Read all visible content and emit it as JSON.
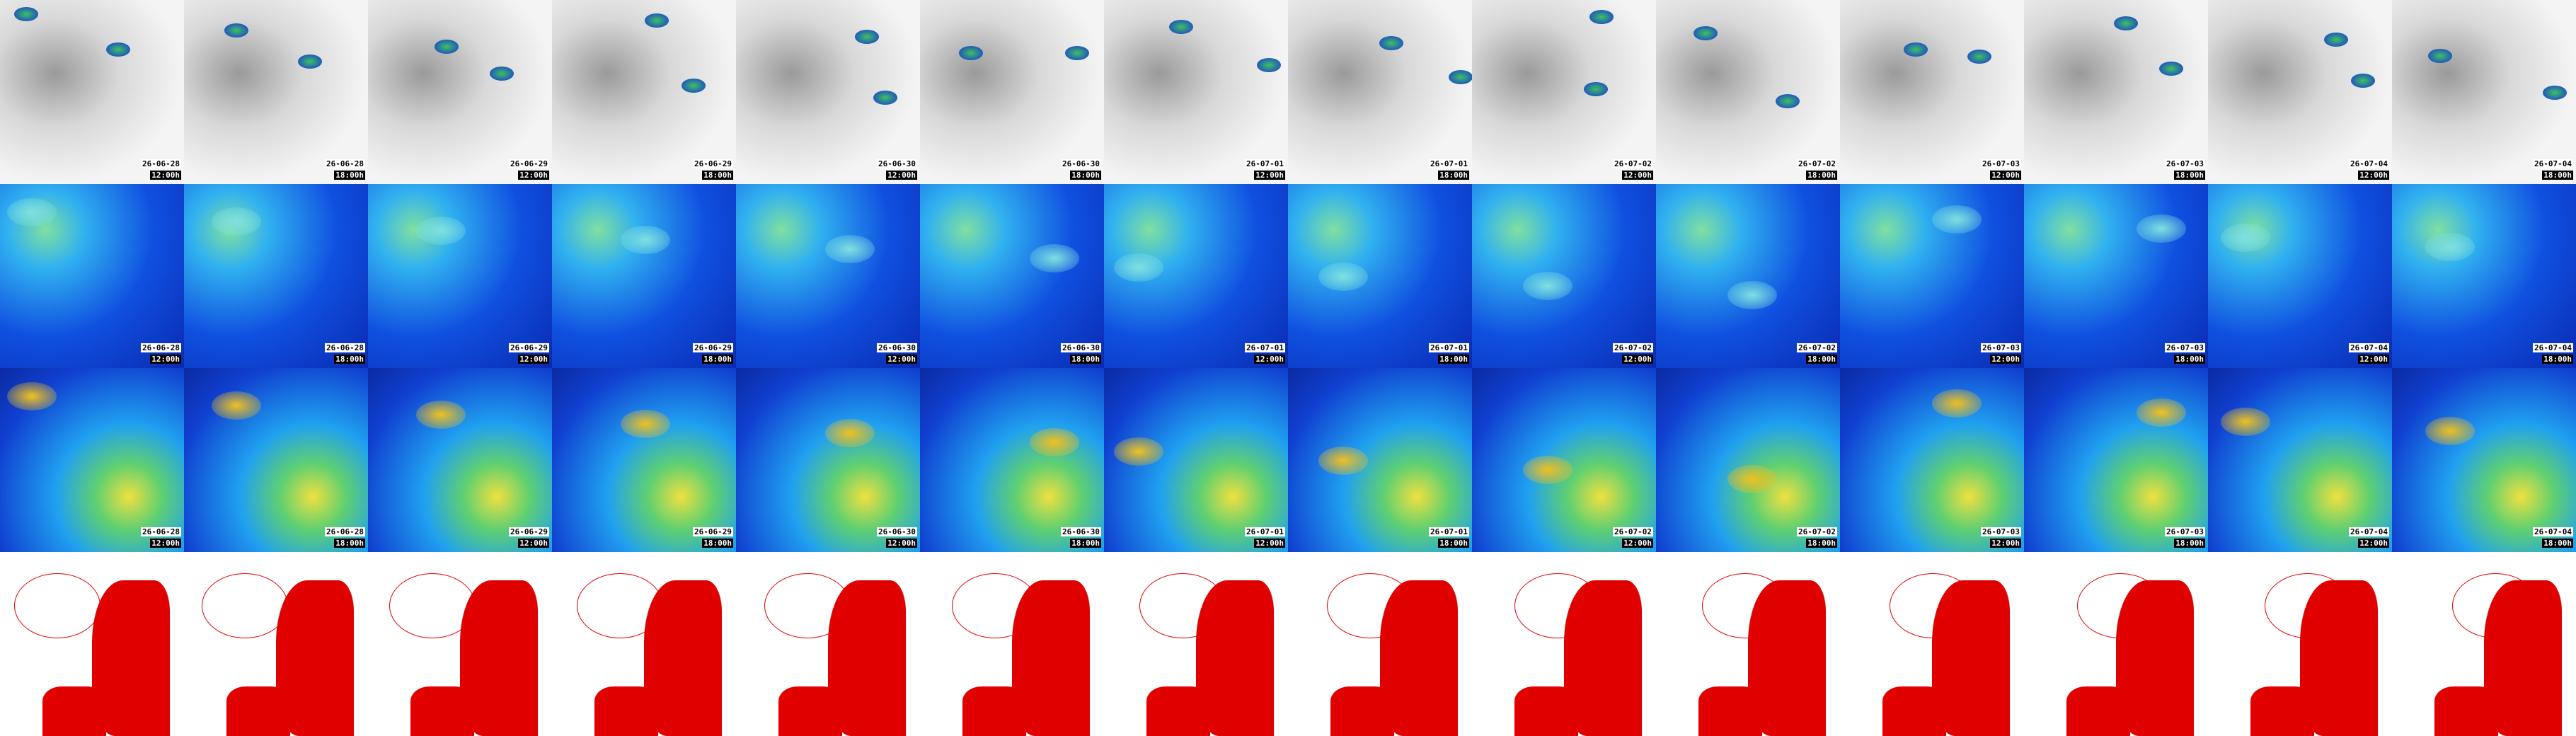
{
  "columns": [
    {
      "date": "26-06-28",
      "time": "12:00h"
    },
    {
      "date": "26-06-28",
      "time": "18:00h"
    },
    {
      "date": "26-06-29",
      "time": "12:00h"
    },
    {
      "date": "26-06-29",
      "time": "18:00h"
    },
    {
      "date": "26-06-30",
      "time": "12:00h"
    },
    {
      "date": "26-06-30",
      "time": "18:00h"
    },
    {
      "date": "26-07-01",
      "time": "12:00h"
    },
    {
      "date": "26-07-01",
      "time": "18:00h"
    },
    {
      "date": "26-07-02",
      "time": "12:00h"
    },
    {
      "date": "26-07-02",
      "time": "18:00h"
    },
    {
      "date": "26-07-03",
      "time": "12:00h"
    },
    {
      "date": "26-07-03",
      "time": "18:00h"
    },
    {
      "date": "26-07-04",
      "time": "12:00h"
    },
    {
      "date": "26-07-04",
      "time": "18:00h"
    }
  ]
}
